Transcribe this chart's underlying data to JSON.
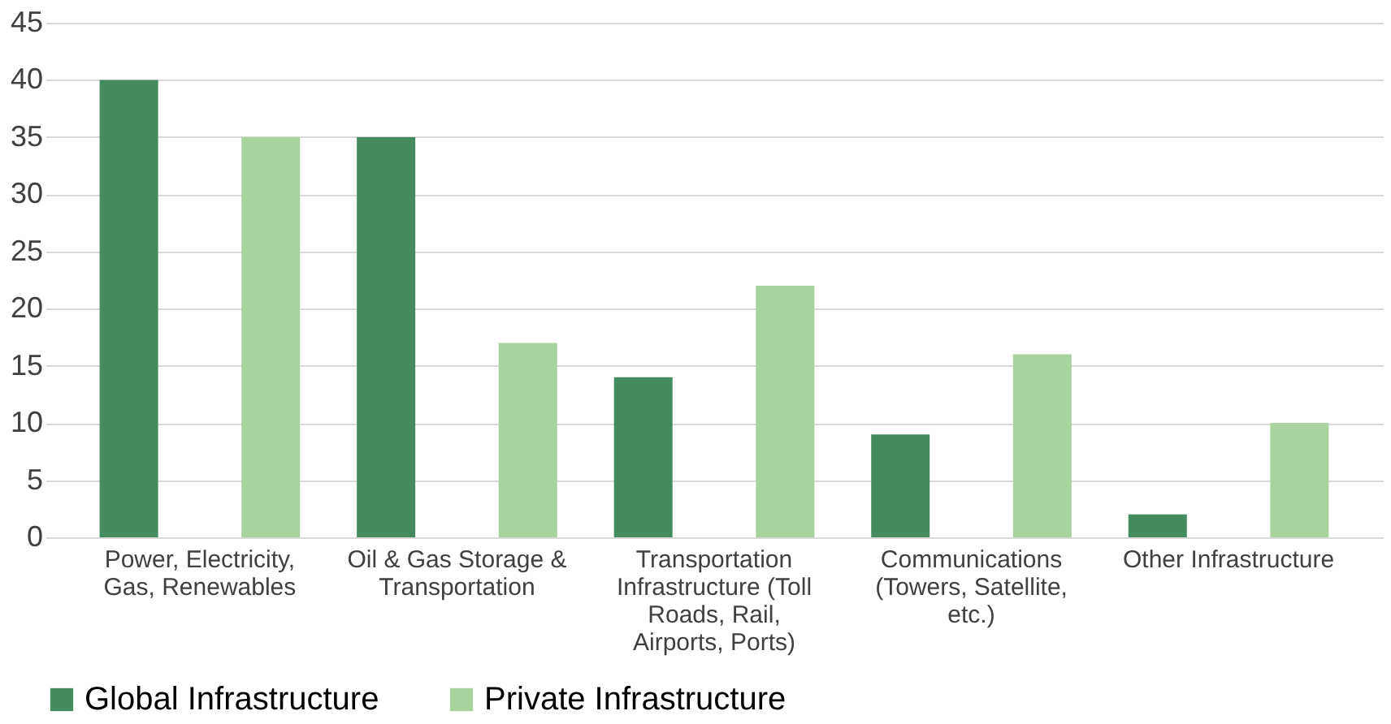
{
  "chart_data": {
    "type": "bar",
    "categories": [
      "Power, Electricity, Gas, Renewables",
      "Oil & Gas Storage & Transportation",
      "Transportation Infrastructure (Toll Roads, Rail, Airports, Ports)",
      "Communications (Towers, Satellite, etc.)",
      "Other Infrastructure"
    ],
    "series": [
      {
        "name": "Global Infrastructure",
        "color": "#448c5f",
        "values": [
          40,
          35,
          14,
          9,
          2
        ]
      },
      {
        "name": "Private Infrastructure",
        "color": "#a9d39e",
        "values": [
          35,
          17,
          22,
          16,
          10
        ]
      }
    ],
    "ylim": [
      0,
      45
    ],
    "yticks": [
      0,
      5,
      10,
      15,
      20,
      25,
      30,
      35,
      40,
      45
    ],
    "grid": "y",
    "legend": "bottom"
  }
}
